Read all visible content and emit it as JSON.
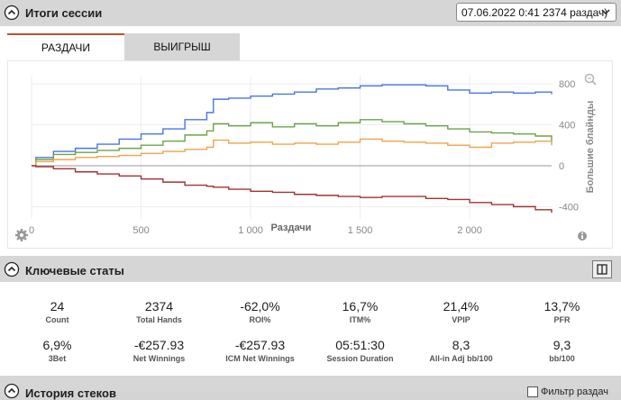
{
  "session": {
    "title": "Итоги сессии",
    "selector_value": "07.06.2022 0:41 2374 раздач)",
    "tabs": [
      "РАЗДАЧИ",
      "ВЫИГРЫШ"
    ]
  },
  "key_stats": {
    "title": "Ключевые статы",
    "rows": [
      [
        {
          "value": "24",
          "label": "Count"
        },
        {
          "value": "2374",
          "label": "Total Hands"
        },
        {
          "value": "-62,0%",
          "label": "ROI%"
        },
        {
          "value": "16,7%",
          "label": "ITM%"
        },
        {
          "value": "21,4%",
          "label": "VPIP"
        },
        {
          "value": "13,7%",
          "label": "PFR"
        }
      ],
      [
        {
          "value": "6,9%",
          "label": "3Bet"
        },
        {
          "value": "-€257.93",
          "label": "Net Winnings"
        },
        {
          "value": "-€257.93",
          "label": "ICM Net Winnings"
        },
        {
          "value": "05:51:30",
          "label": "Session Duration"
        },
        {
          "value": "8,3",
          "label": "All-in Adj bb/100"
        },
        {
          "value": "9,3",
          "label": "bb/100"
        }
      ]
    ]
  },
  "history": {
    "title": "История стеков",
    "filter_label": "Фильтр раздач"
  },
  "colors": {
    "blue": "#4a74e6",
    "green": "#6da24a",
    "orange": "#f2a24a",
    "red": "#a23232",
    "tab_accent": "#c0502c"
  },
  "chart_data": {
    "type": "line",
    "xlabel": "Раздачи",
    "ylabel": "Большие блайнды",
    "xlim": [
      0,
      2374
    ],
    "ylim": [
      -520,
      880
    ],
    "x_ticks": [
      "0",
      "500",
      "1 000",
      "1 500",
      "2 000"
    ],
    "x_tick_values": [
      0,
      500,
      1000,
      1500,
      2000
    ],
    "y_ticks": [
      "800",
      "400",
      "0",
      "-400"
    ],
    "y_tick_values": [
      800,
      400,
      0,
      -400
    ],
    "grid": true,
    "x": [
      0,
      20,
      100,
      200,
      300,
      400,
      500,
      600,
      700,
      800,
      830,
      900,
      1000,
      1100,
      1200,
      1300,
      1400,
      1500,
      1600,
      1700,
      1800,
      1900,
      2000,
      2100,
      2200,
      2300,
      2374
    ],
    "series": [
      {
        "color": "#4a74e6",
        "values": [
          0,
          80,
          140,
          170,
          210,
          260,
          310,
          360,
          450,
          520,
          650,
          660,
          680,
          700,
          720,
          750,
          760,
          780,
          790,
          790,
          780,
          740,
          710,
          720,
          710,
          720,
          700
        ]
      },
      {
        "color": "#6da24a",
        "values": [
          0,
          60,
          110,
          130,
          150,
          170,
          200,
          240,
          300,
          340,
          410,
          390,
          420,
          380,
          410,
          390,
          420,
          450,
          430,
          410,
          390,
          360,
          330,
          320,
          310,
          290,
          230
        ]
      },
      {
        "color": "#f2a24a",
        "values": [
          0,
          40,
          60,
          80,
          90,
          100,
          120,
          140,
          160,
          180,
          250,
          220,
          230,
          210,
          220,
          210,
          230,
          260,
          240,
          230,
          220,
          200,
          180,
          220,
          230,
          240,
          200
        ]
      },
      {
        "color": "#a23232",
        "values": [
          0,
          -10,
          -30,
          -60,
          -80,
          -100,
          -130,
          -160,
          -190,
          -200,
          -210,
          -230,
          -250,
          -260,
          -280,
          -290,
          -300,
          -310,
          -300,
          -300,
          -320,
          -330,
          -360,
          -380,
          -400,
          -430,
          -460
        ]
      }
    ]
  }
}
